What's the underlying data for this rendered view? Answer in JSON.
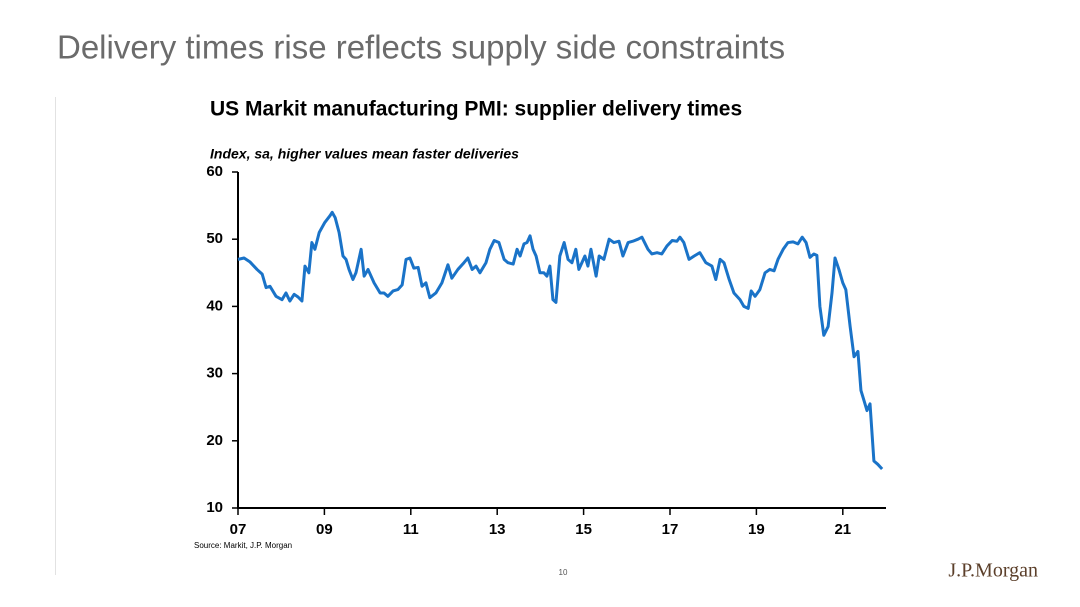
{
  "slide_title": "Delivery times rise reflects supply side constraints",
  "chart_data": {
    "type": "line",
    "title": "US Markit manufacturing PMI: supplier delivery times",
    "subtitle": "Index, sa, higher values mean faster deliveries",
    "color": "#1a73c8",
    "xlim": [
      2007,
      2022
    ],
    "xticks": [
      {
        "value": 2007,
        "label": "07"
      },
      {
        "value": 2009,
        "label": "09"
      },
      {
        "value": 2011,
        "label": "11"
      },
      {
        "value": 2013,
        "label": "13"
      },
      {
        "value": 2015,
        "label": "15"
      },
      {
        "value": 2017,
        "label": "17"
      },
      {
        "value": 2019,
        "label": "19"
      },
      {
        "value": 2021,
        "label": "21"
      }
    ],
    "ylim": [
      10,
      60
    ],
    "yticks": [
      10,
      20,
      30,
      40,
      50,
      60
    ],
    "x": [
      2007.0,
      2007.14,
      2007.28,
      2007.44,
      2007.56,
      2007.65,
      2007.74,
      2007.88,
      2008.02,
      2008.11,
      2008.2,
      2008.3,
      2008.39,
      2008.48,
      2008.55,
      2008.64,
      2008.71,
      2008.78,
      2008.88,
      2009.01,
      2009.13,
      2009.18,
      2009.25,
      2009.34,
      2009.43,
      2009.5,
      2009.57,
      2009.66,
      2009.73,
      2009.85,
      2009.92,
      2010.01,
      2010.15,
      2010.29,
      2010.38,
      2010.47,
      2010.59,
      2010.7,
      2010.8,
      2010.89,
      2010.98,
      2011.07,
      2011.17,
      2011.26,
      2011.35,
      2011.44,
      2011.58,
      2011.72,
      2011.86,
      2011.95,
      2012.09,
      2012.23,
      2012.32,
      2012.42,
      2012.51,
      2012.6,
      2012.74,
      2012.83,
      2012.93,
      2013.04,
      2013.16,
      2013.25,
      2013.37,
      2013.46,
      2013.53,
      2013.62,
      2013.69,
      2013.76,
      2013.83,
      2013.9,
      2013.99,
      2014.08,
      2014.15,
      2014.22,
      2014.29,
      2014.36,
      2014.45,
      2014.55,
      2014.64,
      2014.73,
      2014.82,
      2014.89,
      2014.96,
      2015.03,
      2015.1,
      2015.17,
      2015.29,
      2015.36,
      2015.47,
      2015.59,
      2015.7,
      2015.82,
      2015.91,
      2016.03,
      2016.14,
      2016.26,
      2016.35,
      2016.49,
      2016.58,
      2016.7,
      2016.81,
      2016.93,
      2017.05,
      2017.16,
      2017.23,
      2017.32,
      2017.44,
      2017.56,
      2017.69,
      2017.83,
      2017.97,
      2018.06,
      2018.16,
      2018.25,
      2018.37,
      2018.48,
      2018.62,
      2018.71,
      2018.81,
      2018.88,
      2018.97,
      2019.08,
      2019.2,
      2019.31,
      2019.41,
      2019.5,
      2019.62,
      2019.73,
      2019.85,
      2019.96,
      2020.06,
      2020.15,
      2020.24,
      2020.33,
      2020.4,
      2020.47,
      2020.56,
      2020.66,
      2020.75,
      2020.82,
      2020.91,
      2021.0,
      2021.07,
      2021.17,
      2021.26,
      2021.35,
      2021.42,
      2021.49,
      2021.56,
      2021.63,
      2021.72,
      2021.81,
      2021.91
    ],
    "values": [
      47,
      47.2,
      46.6,
      45.5,
      44.8,
      42.8,
      43,
      41.5,
      41,
      42,
      40.8,
      41.8,
      41.4,
      40.8,
      46,
      45,
      49.5,
      48.5,
      51,
      52.5,
      53.5,
      54,
      53.2,
      51,
      47.5,
      47,
      45.5,
      44,
      45,
      48.5,
      44.5,
      45.5,
      43.5,
      42,
      42,
      41.5,
      42.3,
      42.5,
      43.2,
      47,
      47.2,
      45.7,
      45.8,
      43,
      43.5,
      41.3,
      42,
      43.5,
      46.2,
      44.2,
      45.5,
      46.5,
      47.2,
      45.5,
      46,
      45,
      46.5,
      48.5,
      49.8,
      49.5,
      47,
      46.5,
      46.3,
      48.5,
      47.5,
      49.3,
      49.5,
      50.5,
      48.5,
      47.5,
      45,
      45,
      44.5,
      46,
      41,
      40.6,
      47.5,
      49.5,
      47,
      46.5,
      48.5,
      45.5,
      46.5,
      47.5,
      46,
      48.5,
      44.5,
      47.5,
      47,
      50,
      49.5,
      49.7,
      47.5,
      49.5,
      49.7,
      50,
      50.3,
      48.5,
      47.8,
      48,
      47.8,
      49,
      49.8,
      49.7,
      50.3,
      49.5,
      47,
      47.5,
      48,
      46.5,
      46,
      44,
      47,
      46.5,
      44,
      42,
      41,
      40,
      39.7,
      42.3,
      41.5,
      42.5,
      45,
      45.5,
      45.3,
      47,
      48.5,
      49.5,
      49.6,
      49.3,
      50.3,
      49.5,
      47.3,
      47.8,
      47.6,
      40,
      35.7,
      37,
      42,
      47.2,
      45.5,
      43.5,
      42.5,
      37,
      32.5,
      33.3,
      27.5,
      26,
      24.5,
      25.5,
      17,
      16.5,
      15.8
    ]
  },
  "source": "Source: Markit, J.P. Morgan",
  "page_number": "10",
  "logo": "J.P.Morgan"
}
